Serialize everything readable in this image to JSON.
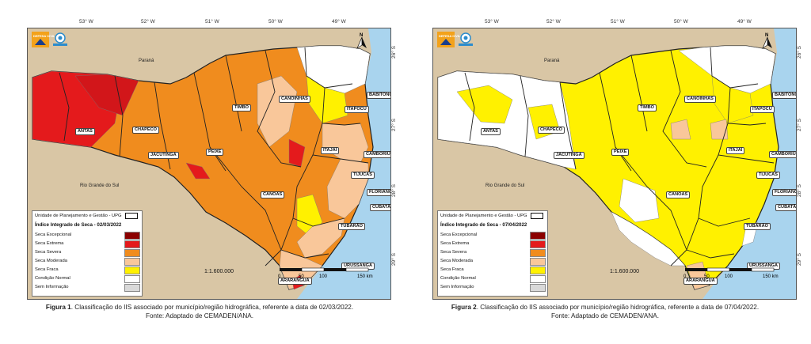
{
  "figures": [
    {
      "id": "fig1",
      "fill": "orange",
      "date": "02/03/2022",
      "legend_title": "Índice Integrado de Seca - 02/03/2022",
      "caption_label": "Figura 1",
      "caption_text": ". Classificação do IIS associado por município/região hidrográfica, referente a data de 02/03/2022.",
      "caption_source": "Fonte: Adaptado de CEMADEN/ANA."
    },
    {
      "id": "fig2",
      "fill": "yellow",
      "date": "07/04/2022",
      "legend_title": "Índice Integrado de Seca - 07/04/2022",
      "caption_label": "Figura 2",
      "caption_text": ". Classificação do IIS associado por município/região hidrográfica, referente a data de 07/04/2022.",
      "caption_source": "Fonte: Adaptado de CEMADEN/ANA."
    }
  ],
  "map": {
    "longitudes": [
      "53° W",
      "52° W",
      "51° W",
      "50° W",
      "49° W"
    ],
    "latitudes": [
      "26° S",
      "27° S",
      "28° S",
      "29° S"
    ],
    "neighbors": {
      "north": "Paraná",
      "south": "Rio Grande do Sul"
    },
    "regions": [
      "ANTAS",
      "CHAPECÓ",
      "JACUTINGA",
      "PEIXE",
      "TIMBÓ",
      "CANOINHAS",
      "BABITONGA",
      "ITAPOCU",
      "ITAJAÍ",
      "CAMBORIÚ",
      "TIJUCAS",
      "FLORIANÓPOLIS",
      "CUBATÃO",
      "TUBARÃO",
      "CANOAS",
      "URUSSANGA",
      "ARARANGUÁ"
    ],
    "scale": "1:1.600.000",
    "scalebar_ticks": [
      "0",
      "50",
      "100",
      "150 km"
    ],
    "north_symbol": "N"
  },
  "legend": {
    "upg_label": "Unidade de Planejamento e Gestão - UPG",
    "classes": [
      {
        "label": "Seca Excepcional",
        "color": "#8b0000"
      },
      {
        "label": "Seca Extrema",
        "color": "#e41a1c"
      },
      {
        "label": "Seca Severa",
        "color": "#f08c1e"
      },
      {
        "label": "Seca Moderada",
        "color": "#f9c79a"
      },
      {
        "label": "Seca Fraca",
        "color": "#fff100"
      },
      {
        "label": "Condição Normal",
        "color": "#ffffff"
      },
      {
        "label": "Sem Informação",
        "color": "#d9d9d9"
      }
    ]
  },
  "colors": {
    "land_outside": "#d9c6a5",
    "ocean": "#a9d4ee",
    "border": "#333333"
  },
  "logo": {
    "brand_text": "DEFESA CIVIL",
    "icon": "eye-logo-icon"
  }
}
